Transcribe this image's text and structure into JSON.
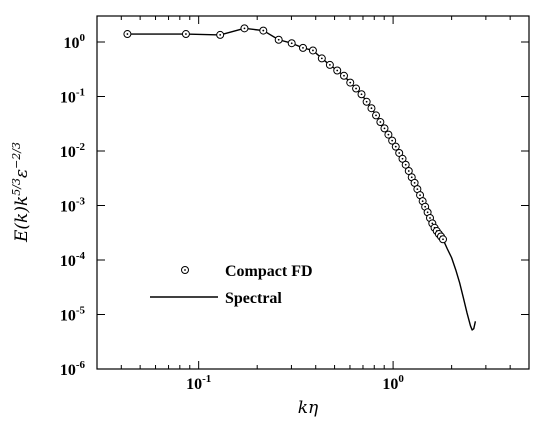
{
  "chart_data": {
    "type": "line",
    "title": "",
    "x_scale": "log",
    "y_scale": "log",
    "xlim": [
      0.03,
      5
    ],
    "ylim": [
      1e-06,
      3
    ],
    "xticks": [
      0.1,
      1
    ],
    "xtick_labels": [
      {
        "base": "10",
        "exp": "-1"
      },
      {
        "base": "10",
        "exp": "0"
      }
    ],
    "yticks": [
      1,
      0.1,
      0.01,
      0.001,
      0.0001,
      1e-05,
      1e-06
    ],
    "ytick_labels": [
      {
        "base": "10",
        "exp": "0"
      },
      {
        "base": "10",
        "exp": "-1"
      },
      {
        "base": "10",
        "exp": "-2"
      },
      {
        "base": "10",
        "exp": "-3"
      },
      {
        "base": "10",
        "exp": "-4"
      },
      {
        "base": "10",
        "exp": "-5"
      },
      {
        "base": "10",
        "exp": "-6"
      }
    ],
    "xlabel": {
      "main": "kη"
    },
    "ylabel": {
      "p1": "E(k)k",
      "e1": "5/3",
      "p2": "ε",
      "e2": "−2/3"
    },
    "legend": {
      "position": "lower-left"
    },
    "grid": false,
    "series": [
      {
        "name": "Compact FD",
        "style": "markers",
        "marker": "circle-dot",
        "color": "#000000",
        "x": [
          0.043,
          0.086,
          0.129,
          0.172,
          0.215,
          0.258,
          0.301,
          0.344,
          0.387,
          0.43,
          0.473,
          0.516,
          0.559,
          0.602,
          0.645,
          0.688,
          0.731,
          0.774,
          0.817,
          0.86,
          0.903,
          0.946,
          0.989,
          1.032,
          1.075,
          1.118,
          1.161,
          1.204,
          1.247,
          1.29,
          1.333,
          1.376,
          1.419,
          1.462,
          1.505,
          1.548,
          1.591,
          1.634,
          1.677,
          1.72,
          1.763,
          1.806
        ],
        "y": [
          1.4,
          1.4,
          1.35,
          1.78,
          1.62,
          1.1,
          0.95,
          0.78,
          0.7,
          0.5,
          0.38,
          0.3,
          0.24,
          0.18,
          0.14,
          0.11,
          0.08,
          0.061,
          0.045,
          0.034,
          0.026,
          0.02,
          0.0155,
          0.012,
          0.0092,
          0.0072,
          0.0056,
          0.0043,
          0.0033,
          0.0026,
          0.002,
          0.00155,
          0.0012,
          0.00095,
          0.00075,
          0.00059,
          0.00047,
          0.00039,
          0.00034,
          0.0003,
          0.00027,
          0.00024
        ]
      },
      {
        "name": "Spectral",
        "style": "line",
        "color": "#000000",
        "x": [
          0.043,
          0.086,
          0.129,
          0.172,
          0.215,
          0.258,
          0.301,
          0.344,
          0.387,
          0.43,
          0.473,
          0.516,
          0.559,
          0.602,
          0.645,
          0.688,
          0.731,
          0.774,
          0.817,
          0.86,
          0.903,
          0.946,
          0.989,
          1.032,
          1.075,
          1.118,
          1.161,
          1.204,
          1.247,
          1.29,
          1.333,
          1.376,
          1.419,
          1.462,
          1.505,
          1.548,
          1.591,
          1.634,
          1.677,
          1.72,
          1.763,
          1.806,
          1.9,
          2.0,
          2.1,
          2.2,
          2.3,
          2.4,
          2.5,
          2.55,
          2.6,
          2.65
        ],
        "y": [
          1.4,
          1.4,
          1.35,
          1.78,
          1.62,
          1.1,
          0.95,
          0.78,
          0.7,
          0.5,
          0.38,
          0.3,
          0.24,
          0.18,
          0.14,
          0.11,
          0.08,
          0.061,
          0.045,
          0.034,
          0.026,
          0.02,
          0.0155,
          0.012,
          0.0092,
          0.0072,
          0.0056,
          0.0043,
          0.0033,
          0.0026,
          0.002,
          0.00155,
          0.0012,
          0.00095,
          0.00075,
          0.00059,
          0.00047,
          0.00039,
          0.00034,
          0.0003,
          0.00027,
          0.00024,
          0.00016,
          0.00011,
          6.6e-05,
          3.8e-05,
          2e-05,
          1.07e-05,
          6.2e-06,
          5.2e-06,
          5.5e-06,
          7.5e-06
        ]
      }
    ]
  }
}
